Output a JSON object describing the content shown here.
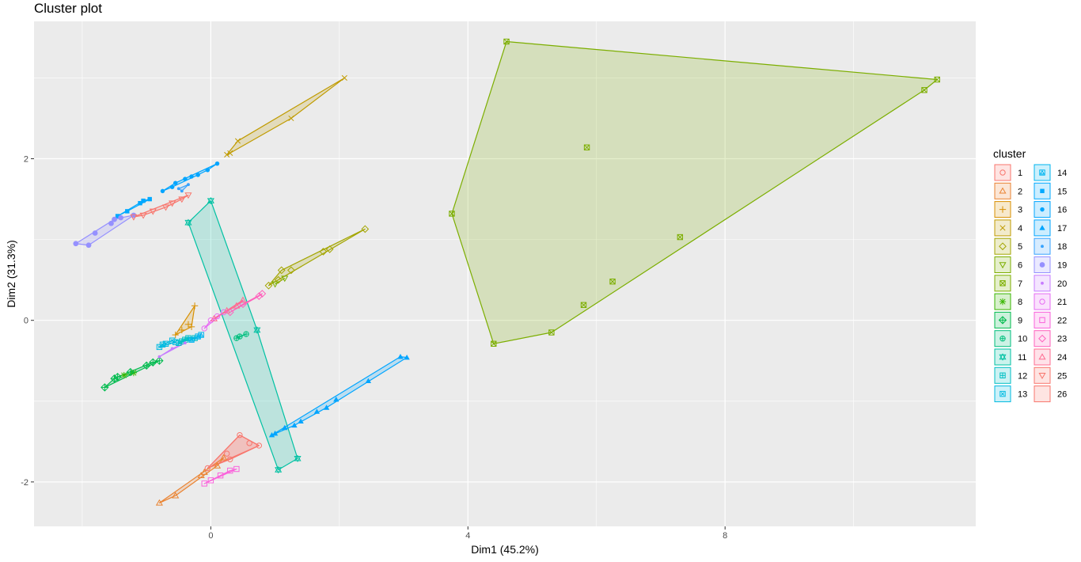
{
  "chart_data": {
    "type": "scatter",
    "title": "Cluster plot",
    "xlabel": "Dim1 (45.2%)",
    "ylabel": "Dim2 (31.3%)",
    "xlim": [
      -2.75,
      11.9
    ],
    "ylim": [
      -2.55,
      3.7
    ],
    "x_ticks": [
      0,
      4,
      8
    ],
    "y_ticks": [
      -2,
      0,
      2
    ],
    "grid": true,
    "legend_title": "cluster",
    "legend_position": "right",
    "series": [
      {
        "name": "1",
        "color": "#F8766D",
        "shape": "circle-open",
        "points": [
          [
            -0.05,
            -1.83
          ],
          [
            0.25,
            -1.65
          ],
          [
            0.45,
            -1.42
          ],
          [
            0.6,
            -1.52
          ],
          [
            0.75,
            -1.55
          ],
          [
            0.3,
            -1.72
          ]
        ]
      },
      {
        "name": "2",
        "color": "#EA8331",
        "shape": "triangle-open",
        "points": [
          [
            -0.8,
            -2.26
          ],
          [
            -0.55,
            -2.17
          ],
          [
            -0.15,
            -1.92
          ],
          [
            -0.1,
            -1.88
          ],
          [
            0.1,
            -1.8
          ],
          [
            0.2,
            -1.7
          ]
        ]
      },
      {
        "name": "3",
        "color": "#D89000",
        "shape": "plus",
        "points": [
          [
            -0.25,
            0.18
          ],
          [
            -0.55,
            -0.18
          ],
          [
            -0.45,
            -0.12
          ],
          [
            -0.35,
            -0.05
          ],
          [
            -0.3,
            -0.08
          ]
        ]
      },
      {
        "name": "4",
        "color": "#C09B00",
        "shape": "cross",
        "points": [
          [
            0.25,
            2.05
          ],
          [
            0.3,
            2.07
          ],
          [
            0.42,
            2.22
          ],
          [
            1.25,
            2.5
          ],
          [
            2.08,
            3.0
          ]
        ]
      },
      {
        "name": "5",
        "color": "#A3A500",
        "shape": "diamond-open",
        "points": [
          [
            0.9,
            0.43
          ],
          [
            1.05,
            0.5
          ],
          [
            1.1,
            0.62
          ],
          [
            1.25,
            0.62
          ],
          [
            1.75,
            0.85
          ],
          [
            1.85,
            0.88
          ],
          [
            2.4,
            1.13
          ]
        ]
      },
      {
        "name": "6",
        "color": "#7CAE00",
        "shape": "triangle-down-open",
        "points": [
          [
            1.0,
            0.45
          ],
          [
            1.15,
            0.52
          ]
        ]
      },
      {
        "name": "7",
        "color": "#7CAE00",
        "shape": "square-cross",
        "points": [
          [
            4.6,
            3.45
          ],
          [
            11.3,
            2.98
          ],
          [
            11.1,
            2.85
          ],
          [
            5.85,
            2.14
          ],
          [
            7.3,
            1.03
          ],
          [
            6.25,
            0.48
          ],
          [
            5.8,
            0.19
          ],
          [
            5.3,
            -0.15
          ],
          [
            4.4,
            -0.29
          ],
          [
            3.75,
            1.32
          ]
        ]
      },
      {
        "name": "8",
        "color": "#39B600",
        "shape": "asterisk",
        "points": [
          [
            -1.35,
            -0.68
          ],
          [
            -1.2,
            -0.65
          ]
        ]
      },
      {
        "name": "9",
        "color": "#00BB4E",
        "shape": "diamond-plus",
        "points": [
          [
            -1.65,
            -0.83
          ],
          [
            -1.5,
            -0.72
          ],
          [
            -1.45,
            -0.7
          ],
          [
            -1.25,
            -0.64
          ],
          [
            -1.0,
            -0.56
          ],
          [
            -0.9,
            -0.52
          ],
          [
            -0.8,
            -0.5
          ]
        ]
      },
      {
        "name": "10",
        "color": "#00BF7D",
        "shape": "circle-plus",
        "points": [
          [
            0.4,
            -0.22
          ],
          [
            0.45,
            -0.2
          ],
          [
            0.55,
            -0.17
          ]
        ]
      },
      {
        "name": "11",
        "color": "#00C1A3",
        "shape": "star-david",
        "points": [
          [
            -0.35,
            1.21
          ],
          [
            0.0,
            1.48
          ],
          [
            0.72,
            -0.12
          ],
          [
            1.35,
            -1.71
          ],
          [
            1.05,
            -1.85
          ]
        ]
      },
      {
        "name": "12",
        "color": "#00BFC4",
        "shape": "square-plus",
        "points": [
          [
            -0.5,
            -0.28
          ],
          [
            -0.45,
            -0.26
          ],
          [
            -0.4,
            -0.24
          ],
          [
            -0.35,
            -0.22
          ],
          [
            -0.25,
            -0.22
          ]
        ]
      },
      {
        "name": "13",
        "color": "#00BAE0",
        "shape": "square-x",
        "points": [
          [
            -0.8,
            -0.33
          ],
          [
            -0.75,
            -0.3
          ],
          [
            -0.7,
            -0.29
          ],
          [
            -0.55,
            -0.27
          ],
          [
            -0.6,
            -0.25
          ]
        ]
      },
      {
        "name": "14",
        "color": "#00B4EF",
        "shape": "square-triangle",
        "points": [
          [
            -0.3,
            -0.24
          ],
          [
            -0.2,
            -0.2
          ],
          [
            -0.15,
            -0.18
          ]
        ]
      },
      {
        "name": "15",
        "color": "#00A9FF",
        "shape": "square",
        "points": [
          [
            -1.45,
            1.29
          ],
          [
            -1.3,
            1.35
          ],
          [
            -1.1,
            1.45
          ],
          [
            -1.05,
            1.48
          ],
          [
            -0.95,
            1.5
          ]
        ]
      },
      {
        "name": "16",
        "color": "#00A5FF",
        "shape": "dot",
        "points": [
          [
            -0.75,
            1.6
          ],
          [
            -0.6,
            1.65
          ],
          [
            -0.55,
            1.7
          ],
          [
            -0.4,
            1.75
          ],
          [
            -0.3,
            1.78
          ],
          [
            -0.2,
            1.8
          ],
          [
            -0.05,
            1.86
          ],
          [
            0.1,
            1.94
          ]
        ]
      },
      {
        "name": "17",
        "color": "#00A5FF",
        "shape": "triangle",
        "points": [
          [
            0.95,
            -1.42
          ],
          [
            1.0,
            -1.4
          ],
          [
            1.15,
            -1.33
          ],
          [
            1.3,
            -1.3
          ],
          [
            1.4,
            -1.25
          ],
          [
            1.65,
            -1.13
          ],
          [
            1.8,
            -1.08
          ],
          [
            1.95,
            -0.98
          ],
          [
            2.45,
            -0.75
          ],
          [
            2.95,
            -0.45
          ],
          [
            3.05,
            -0.46
          ]
        ]
      },
      {
        "name": "18",
        "color": "#35A2FF",
        "shape": "dot-small",
        "points": [
          [
            -0.5,
            1.63
          ],
          [
            -0.45,
            1.6
          ],
          [
            -0.35,
            1.68
          ]
        ]
      },
      {
        "name": "19",
        "color": "#9590FF",
        "shape": "circle",
        "points": [
          [
            -2.1,
            0.95
          ],
          [
            -1.9,
            0.93
          ],
          [
            -1.8,
            1.08
          ],
          [
            -1.55,
            1.2
          ],
          [
            -1.5,
            1.25
          ],
          [
            -1.4,
            1.27
          ],
          [
            -1.2,
            1.3
          ]
        ]
      },
      {
        "name": "20",
        "color": "#C77CFF",
        "shape": "dot-small",
        "points": [
          [
            -0.8,
            -0.45
          ],
          [
            -0.6,
            -0.35
          ],
          [
            -0.4,
            -0.28
          ]
        ]
      },
      {
        "name": "21",
        "color": "#E76BF3",
        "shape": "circle-open",
        "points": [
          [
            -0.1,
            -0.1
          ],
          [
            0.0,
            0.0
          ],
          [
            0.1,
            0.05
          ],
          [
            0.2,
            0.1
          ]
        ]
      },
      {
        "name": "22",
        "color": "#FA62DB",
        "shape": "square-open",
        "points": [
          [
            -0.1,
            -2.02
          ],
          [
            0.0,
            -1.98
          ],
          [
            0.15,
            -1.92
          ],
          [
            0.3,
            -1.86
          ],
          [
            0.4,
            -1.84
          ]
        ]
      },
      {
        "name": "23",
        "color": "#FF62BC",
        "shape": "diamond-open",
        "points": [
          [
            0.3,
            0.1
          ],
          [
            0.5,
            0.2
          ],
          [
            0.75,
            0.3
          ],
          [
            0.8,
            0.33
          ]
        ]
      },
      {
        "name": "24",
        "color": "#FF6C91",
        "shape": "triangle-open",
        "points": [
          [
            0.05,
            0.02
          ],
          [
            0.25,
            0.12
          ],
          [
            0.4,
            0.18
          ],
          [
            0.5,
            0.25
          ]
        ]
      },
      {
        "name": "25",
        "color": "#F8766D",
        "shape": "triangle-down-open",
        "points": [
          [
            -1.2,
            1.28
          ],
          [
            -1.05,
            1.3
          ],
          [
            -0.9,
            1.35
          ],
          [
            -0.7,
            1.4
          ],
          [
            -0.6,
            1.45
          ],
          [
            -0.45,
            1.5
          ],
          [
            -0.35,
            1.55
          ]
        ]
      },
      {
        "name": "26",
        "color": "#F8766D",
        "shape": "none",
        "points": [
          [
            -0.05,
            -1.83
          ],
          [
            0.45,
            -1.42
          ],
          [
            0.75,
            -1.55
          ],
          [
            0.25,
            -1.72
          ]
        ]
      }
    ]
  }
}
